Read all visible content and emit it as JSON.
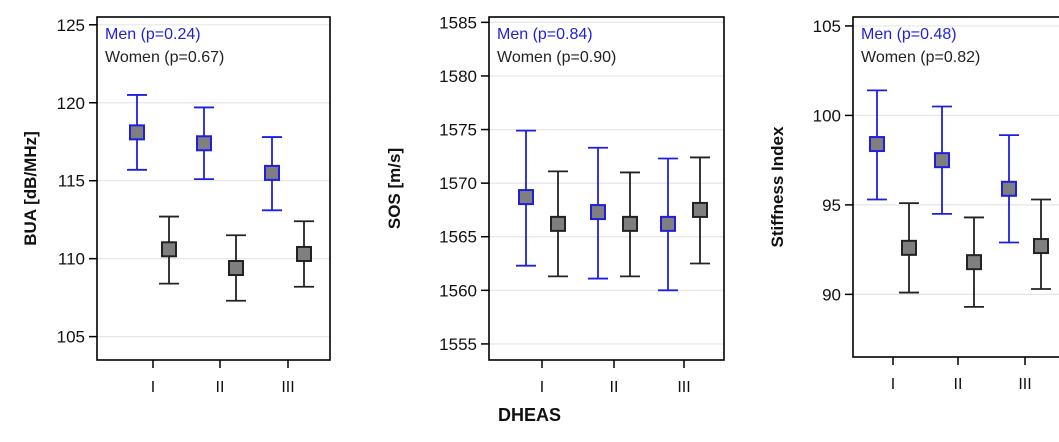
{
  "figure": {
    "shared_xlabel": "DHEAS"
  },
  "colors": {
    "men": "#1f1fe0",
    "women": "#222222",
    "marker_fill": "#7f7f7f",
    "grid": "#e6e6e6",
    "frame": "#000000"
  },
  "chart_data": [
    {
      "type": "scatter",
      "ylabel": "BUA [dB/MHz]",
      "categories": [
        "I",
        "II",
        "III"
      ],
      "ylim": [
        103.5,
        125.5
      ],
      "yticks": [
        105,
        110,
        115,
        120,
        125
      ],
      "grid": true,
      "legend": [
        {
          "text": "Men (p=0.24)",
          "series": "men"
        },
        {
          "text": "Women (p=0.67)",
          "series": "women"
        }
      ],
      "series": [
        {
          "key": "men",
          "mean": [
            118.1,
            117.4,
            115.5
          ],
          "lower": [
            115.7,
            115.1,
            113.1
          ],
          "upper": [
            120.5,
            119.7,
            117.8
          ]
        },
        {
          "key": "women",
          "mean": [
            110.6,
            109.4,
            110.3
          ],
          "lower": [
            108.4,
            107.3,
            108.2
          ],
          "upper": [
            112.7,
            111.5,
            112.4
          ]
        }
      ]
    },
    {
      "type": "scatter",
      "ylabel": "SOS [m/s]",
      "categories": [
        "I",
        "II",
        "III"
      ],
      "ylim": [
        1553.5,
        1585.5
      ],
      "yticks": [
        1555,
        1560,
        1565,
        1570,
        1575,
        1580,
        1585
      ],
      "grid": true,
      "legend": [
        {
          "text": "Men (p=0.84)",
          "series": "men"
        },
        {
          "text": "Women (p=0.90)",
          "series": "women"
        }
      ],
      "series": [
        {
          "key": "men",
          "mean": [
            1568.7,
            1567.3,
            1566.2
          ],
          "lower": [
            1562.3,
            1561.1,
            1560.0
          ],
          "upper": [
            1574.9,
            1573.3,
            1572.3
          ]
        },
        {
          "key": "women",
          "mean": [
            1566.2,
            1566.2,
            1567.5
          ],
          "lower": [
            1561.3,
            1561.3,
            1562.5
          ],
          "upper": [
            1571.1,
            1571.0,
            1572.4
          ]
        }
      ]
    },
    {
      "type": "scatter",
      "ylabel": "Stiffness Index",
      "categories": [
        "I",
        "II",
        "III"
      ],
      "ylim": [
        86.5,
        105.5
      ],
      "yticks": [
        90,
        95,
        100,
        105
      ],
      "grid": true,
      "legend": [
        {
          "text": "Men (p=0.48)",
          "series": "men"
        },
        {
          "text": "Women (p=0.82)",
          "series": "women"
        }
      ],
      "series": [
        {
          "key": "men",
          "mean": [
            98.4,
            97.5,
            95.9
          ],
          "lower": [
            95.3,
            94.5,
            92.9
          ],
          "upper": [
            101.4,
            100.5,
            98.9
          ]
        },
        {
          "key": "women",
          "mean": [
            92.6,
            91.8,
            92.7
          ],
          "lower": [
            90.1,
            89.3,
            90.3
          ],
          "upper": [
            95.1,
            94.3,
            95.3
          ]
        }
      ]
    }
  ]
}
